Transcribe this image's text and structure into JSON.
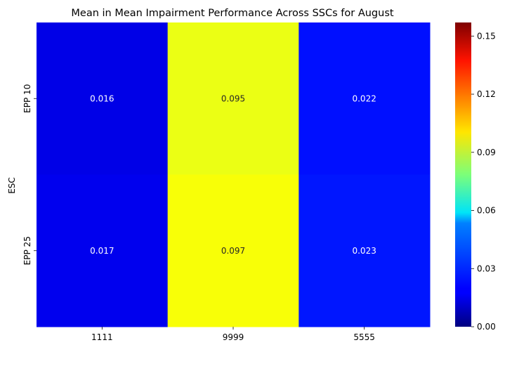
{
  "chart_data": {
    "type": "heatmap",
    "title": "Mean in Mean Impairment Performance Across SSCs for August",
    "xlabel": "",
    "ylabel": "ESC",
    "x_categories": [
      "1111",
      "9999",
      "5555"
    ],
    "y_categories": [
      "EPP 10",
      "EPP 25"
    ],
    "values": [
      [
        0.016,
        0.095,
        0.022
      ],
      [
        0.017,
        0.097,
        0.023
      ]
    ],
    "value_labels": [
      [
        "0.016",
        "0.095",
        "0.022"
      ],
      [
        "0.017",
        "0.097",
        "0.023"
      ]
    ],
    "colormap": "jet",
    "vmin": 0.0,
    "vmax": 0.157,
    "colorbar_ticks": [
      0.0,
      0.03,
      0.06,
      0.09,
      0.12,
      0.15
    ],
    "colorbar_tick_labels": [
      "0.00",
      "0.03",
      "0.06",
      "0.09",
      "0.12",
      "0.15"
    ]
  }
}
